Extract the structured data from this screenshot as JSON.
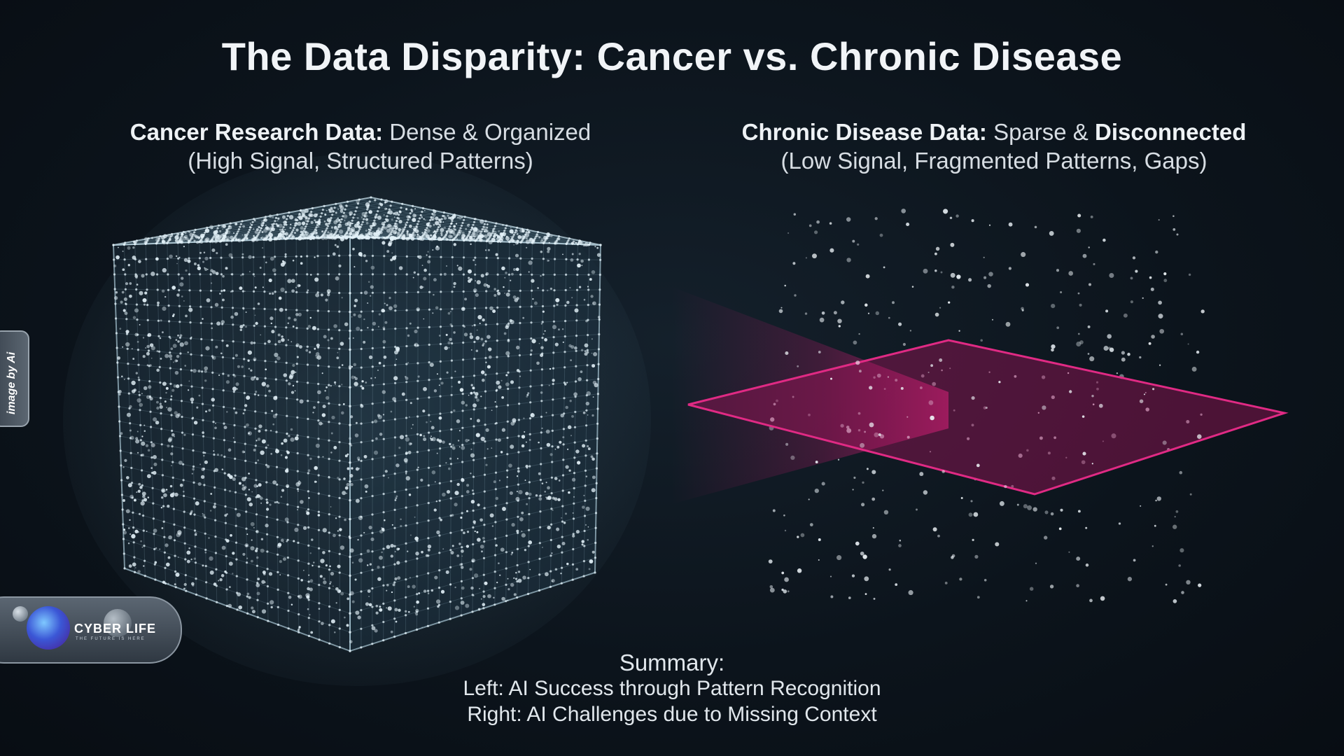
{
  "title": "The Data Disparity: Cancer vs. Chronic Disease",
  "left_panel": {
    "heading_bold": "Cancer Research Data:",
    "heading_rest": " Dense & Organized",
    "subtitle": "(High Signal, Structured Patterns)"
  },
  "right_panel": {
    "heading_bold": "Chronic Disease Data:",
    "heading_mid": " Sparse & ",
    "heading_bold2": "Disconnected",
    "subtitle": "(Low Signal, Fragmented Patterns, Gaps)"
  },
  "summary": {
    "heading": "Summary:",
    "left_line": "Left: AI Success through Pattern Recognition",
    "right_line": "Right: AI Challenges due to Missing Context"
  },
  "watermark": {
    "side_tab": "image by Ai"
  },
  "logo": {
    "name": "CYBER LIFE",
    "tagline": "THE FUTURE IS HERE"
  },
  "colors": {
    "background": "#0b131b",
    "cube_points": "#d9ecf5",
    "plane": "#c21a6d",
    "scatter_points": "#e6edf2"
  }
}
